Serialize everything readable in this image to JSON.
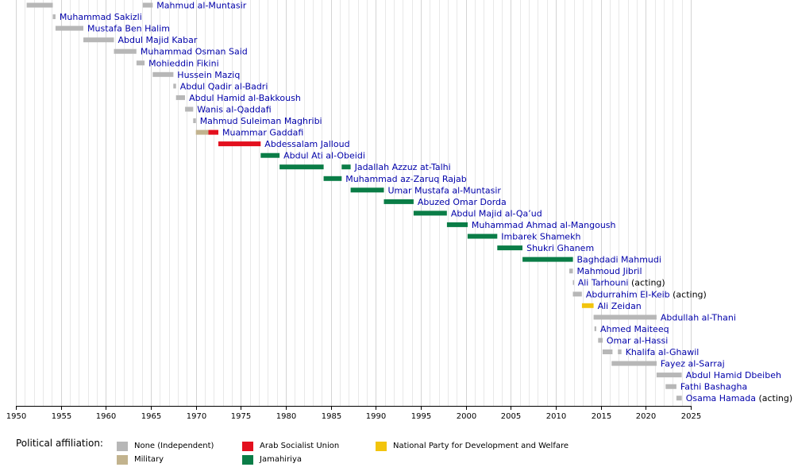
{
  "chart_data": {
    "type": "timeline",
    "title": "",
    "xlabel": "",
    "ylabel": "",
    "xlim": [
      1950,
      2025
    ],
    "x_ticks": [
      1950,
      1955,
      1960,
      1965,
      1970,
      1975,
      1980,
      1985,
      1990,
      1995,
      2000,
      2005,
      2010,
      2015,
      2020,
      2025
    ],
    "grid": "vertical lines every year",
    "affiliation_colors": {
      "None (Independent)": "#b7b7b7",
      "Military": "#c2b38e",
      "Arab Socialist Union": "#e3101e",
      "Jamahiriya": "#0a7d47",
      "National Party for Development and Welfare": "#f2c40d"
    },
    "series": [
      {
        "name": "Mahmud al-Muntasir",
        "spans": [
          [
            1951.2,
            1954.1,
            "None (Independent)"
          ],
          [
            1964.1,
            1965.2,
            "None (Independent)"
          ]
        ]
      },
      {
        "name": "Muhammad Sakizli",
        "spans": [
          [
            1954.1,
            1954.4,
            "None (Independent)"
          ]
        ]
      },
      {
        "name": "Mustafa Ben Halim",
        "spans": [
          [
            1954.4,
            1957.5,
            "None (Independent)"
          ]
        ]
      },
      {
        "name": "Abdul Majid Kabar",
        "spans": [
          [
            1957.5,
            1960.9,
            "None (Independent)"
          ]
        ]
      },
      {
        "name": "Muhammad Osman Said",
        "spans": [
          [
            1960.9,
            1963.4,
            "None (Independent)"
          ]
        ]
      },
      {
        "name": "Mohieddin Fikini",
        "spans": [
          [
            1963.4,
            1964.3,
            "None (Independent)"
          ]
        ]
      },
      {
        "name": "Hussein Maziq",
        "spans": [
          [
            1965.2,
            1967.5,
            "None (Independent)"
          ]
        ]
      },
      {
        "name": "Abdul Qadir al-Badri",
        "spans": [
          [
            1967.5,
            1967.8,
            "None (Independent)"
          ]
        ]
      },
      {
        "name": "Abdul Hamid al-Bakkoush",
        "spans": [
          [
            1967.8,
            1968.8,
            "None (Independent)"
          ]
        ]
      },
      {
        "name": "Wanis al-Qaddafi",
        "spans": [
          [
            1968.8,
            1969.7,
            "None (Independent)"
          ]
        ]
      },
      {
        "name": "Mahmud Suleiman Maghribi",
        "spans": [
          [
            1969.7,
            1970.0,
            "None (Independent)"
          ]
        ]
      },
      {
        "name": "Muammar Gaddafi",
        "spans": [
          [
            1970.0,
            1971.4,
            "Military"
          ],
          [
            1971.4,
            1972.5,
            "Arab Socialist Union"
          ]
        ]
      },
      {
        "name": "Abdessalam Jalloud",
        "spans": [
          [
            1972.5,
            1977.2,
            "Arab Socialist Union"
          ]
        ]
      },
      {
        "name": "Abdul Ati al-Obeidi",
        "spans": [
          [
            1977.2,
            1979.3,
            "Jamahiriya"
          ]
        ]
      },
      {
        "name": "Jadallah Azzuz at-Talhi",
        "spans": [
          [
            1979.3,
            1984.2,
            "Jamahiriya"
          ],
          [
            1986.2,
            1987.2,
            "Jamahiriya"
          ]
        ]
      },
      {
        "name": "Muhammad az-Zaruq Rajab",
        "spans": [
          [
            1984.2,
            1986.2,
            "Jamahiriya"
          ]
        ]
      },
      {
        "name": "Umar Mustafa al-Muntasir",
        "spans": [
          [
            1987.2,
            1990.9,
            "Jamahiriya"
          ]
        ]
      },
      {
        "name": "Abuzed Omar Dorda",
        "spans": [
          [
            1990.9,
            1994.2,
            "Jamahiriya"
          ]
        ]
      },
      {
        "name": "Abdul Majid al-Qa’ud",
        "spans": [
          [
            1994.2,
            1997.9,
            "Jamahiriya"
          ]
        ]
      },
      {
        "name": "Muhammad Ahmad al-Mangoush",
        "spans": [
          [
            1997.9,
            2000.2,
            "Jamahiriya"
          ]
        ]
      },
      {
        "name": "Imbarek Shamekh",
        "spans": [
          [
            2000.2,
            2003.5,
            "Jamahiriya"
          ]
        ]
      },
      {
        "name": "Shukri Ghanem",
        "spans": [
          [
            2003.5,
            2006.3,
            "Jamahiriya"
          ]
        ]
      },
      {
        "name": "Baghdadi Mahmudi",
        "spans": [
          [
            2006.3,
            2011.9,
            "Jamahiriya"
          ]
        ]
      },
      {
        "name": "Mahmoud Jibril",
        "spans": [
          [
            2011.5,
            2011.9,
            "None (Independent)"
          ]
        ]
      },
      {
        "name": "Ali Tarhouni",
        "suffix": "(acting)",
        "spans": [
          [
            2011.9,
            2012.0,
            "None (Independent)"
          ]
        ]
      },
      {
        "name": "Abdurrahim El-Keib",
        "suffix": "(acting)",
        "spans": [
          [
            2011.9,
            2012.9,
            "None (Independent)"
          ]
        ]
      },
      {
        "name": "Ali Zeidan",
        "spans": [
          [
            2012.9,
            2014.2,
            "National Party for Development and Welfare"
          ]
        ]
      },
      {
        "name": "Abdullah al-Thani",
        "spans": [
          [
            2014.2,
            2021.2,
            "None (Independent)"
          ]
        ]
      },
      {
        "name": "Ahmed Maiteeq",
        "spans": [
          [
            2014.3,
            2014.5,
            "None (Independent)"
          ]
        ]
      },
      {
        "name": "Omar al-Hassi",
        "spans": [
          [
            2014.7,
            2015.2,
            "None (Independent)"
          ]
        ]
      },
      {
        "name": "Khalifa al-Ghawil",
        "spans": [
          [
            2015.2,
            2016.3,
            "None (Independent)"
          ],
          [
            2016.9,
            2017.3,
            "None (Independent)"
          ]
        ]
      },
      {
        "name": "Fayez al-Sarraj",
        "spans": [
          [
            2016.2,
            2021.2,
            "None (Independent)"
          ]
        ]
      },
      {
        "name": "Abdul Hamid Dbeibeh",
        "spans": [
          [
            2021.2,
            2024.0,
            "None (Independent)"
          ]
        ]
      },
      {
        "name": "Fathi Bashagha",
        "spans": [
          [
            2022.2,
            2023.4,
            "None (Independent)"
          ]
        ]
      },
      {
        "name": "Osama Hamada",
        "suffix": "(acting)",
        "spans": [
          [
            2023.4,
            2024.0,
            "None (Independent)"
          ]
        ]
      }
    ]
  },
  "legend": {
    "title": "Political affiliation:",
    "items": [
      {
        "label": "None (Independent)",
        "color": "#b7b7b7"
      },
      {
        "label": "Military",
        "color": "#c2b38e"
      },
      {
        "label": "Arab Socialist Union",
        "color": "#e3101e"
      },
      {
        "label": "Jamahiriya",
        "color": "#0a7d47"
      },
      {
        "label": "National Party for Development and Welfare",
        "color": "#f2c40d"
      }
    ]
  }
}
